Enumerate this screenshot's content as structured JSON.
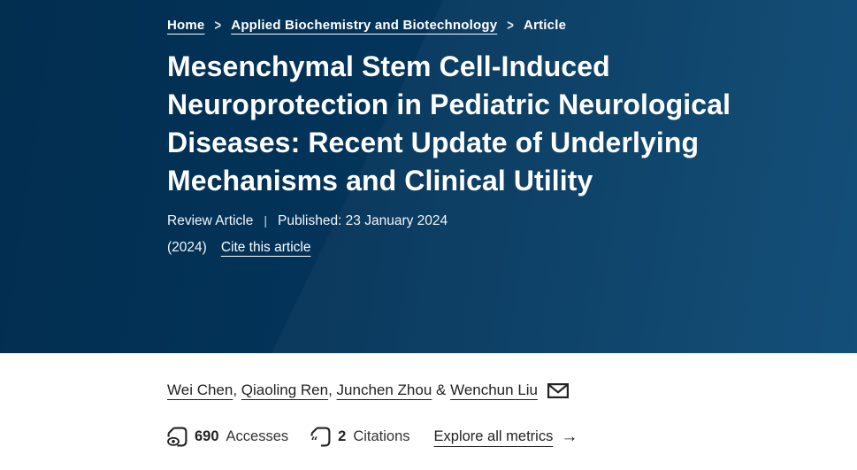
{
  "breadcrumb": {
    "separator": ">",
    "items": [
      {
        "id": "home",
        "label": "Home",
        "link": true
      },
      {
        "id": "journal",
        "label": "Applied Biochemistry and Biotechnology",
        "link": true
      },
      {
        "id": "article",
        "label": "Article",
        "link": false
      }
    ]
  },
  "article": {
    "title": "Mesenchymal Stem Cell-Induced Neuroprotection in Pediatric Neurological Diseases: Recent Update of Underlying Mechanisms and Clinical Utility",
    "type_label": "Review Article",
    "meta_separator": "|",
    "published_label": "Published: 23 January 2024",
    "year": "(2024)",
    "cite_link_label": "Cite this article"
  },
  "authors": {
    "items": [
      {
        "text": "Wei Chen",
        "link": true
      },
      {
        "text": ", ",
        "link": false
      },
      {
        "text": "Qiaoling Ren",
        "link": true
      },
      {
        "text": ", ",
        "link": false
      },
      {
        "text": "Junchen Zhou",
        "link": true
      },
      {
        "text": " & ",
        "link": false
      },
      {
        "text": "Wenchun Liu",
        "link": true
      }
    ],
    "email_icon": "envelope-icon"
  },
  "metrics": {
    "accesses": {
      "count": "690",
      "label": "Accesses",
      "icon": "document-eye-icon"
    },
    "citations": {
      "count": "2",
      "label": "Citations",
      "icon": "document-quote-icon"
    },
    "explore_label": "Explore all metrics",
    "arrow": "→"
  },
  "colors": {
    "hero_gradient_start": "#022e50",
    "hero_gradient_mid": "#03345a",
    "hero_gradient_end": "#0b4974",
    "hero_text": "#ffffff",
    "body_text": "#222222",
    "background": "#ffffff"
  }
}
